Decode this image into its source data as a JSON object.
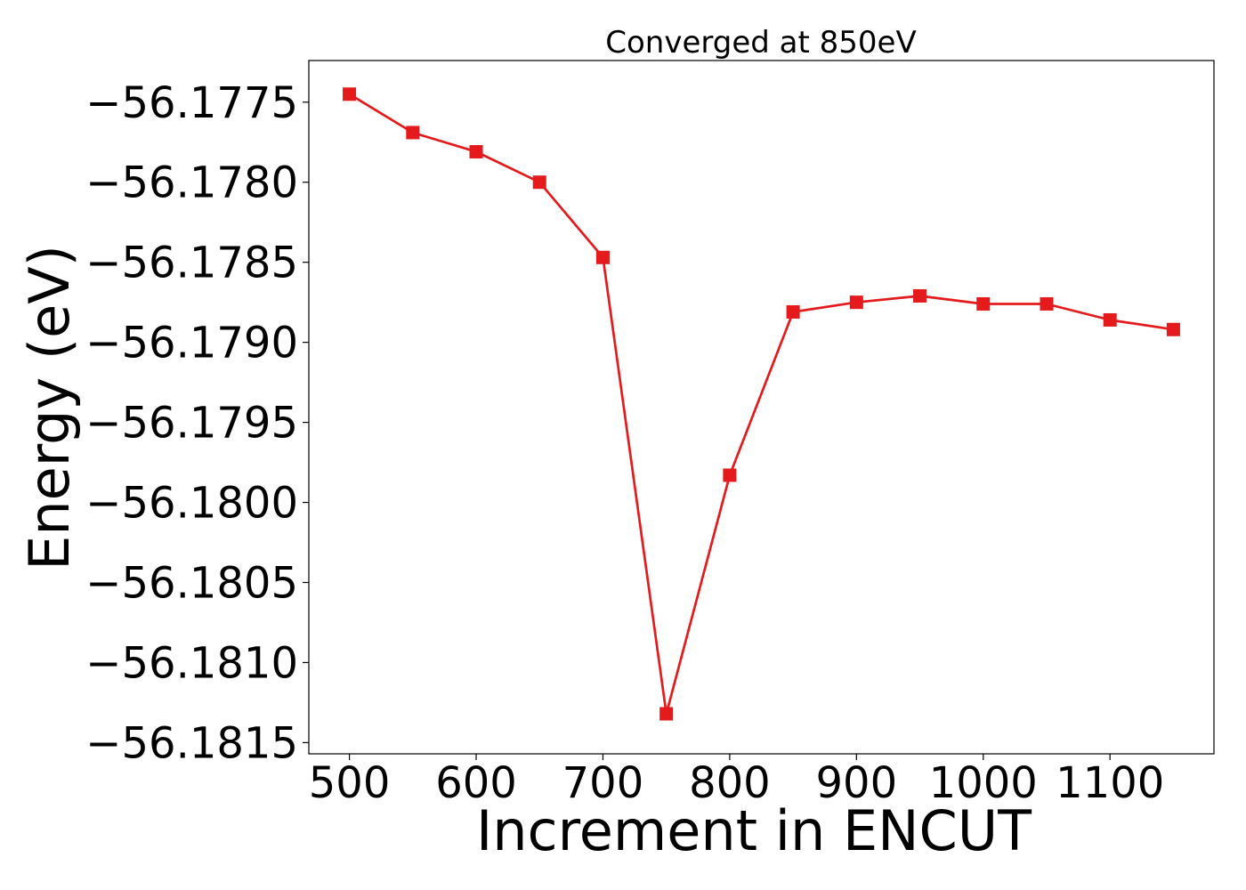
{
  "chart_data": {
    "type": "line",
    "title": "Converged at 850eV",
    "xlabel": "Increment in ENCUT",
    "ylabel": "Energy (eV)",
    "x": [
      500,
      550,
      600,
      650,
      700,
      750,
      800,
      850,
      900,
      950,
      1000,
      1050,
      1100,
      1150
    ],
    "series": [
      {
        "values": [
          -56.17745,
          -56.17769,
          -56.17781,
          -56.178,
          -56.17847,
          -56.18132,
          -56.17983,
          -56.17881,
          -56.17875,
          -56.17871,
          -56.17876,
          -56.17876,
          -56.17886,
          -56.17892
        ],
        "color": "#e41a1c",
        "marker": "square"
      }
    ],
    "xlim": [
      468,
      1182
    ],
    "ylim": [
      -56.18157,
      -56.17724
    ],
    "xticks": [
      500,
      600,
      700,
      800,
      900,
      1000,
      1100
    ],
    "xtick_labels": [
      "500",
      "600",
      "700",
      "800",
      "900",
      "1000",
      "1100"
    ],
    "yticks": [
      -56.1775,
      -56.178,
      -56.1785,
      -56.179,
      -56.1795,
      -56.18,
      -56.1805,
      -56.181,
      -56.1815
    ],
    "ytick_labels": [
      "−56.1775",
      "−56.1780",
      "−56.1785",
      "−56.1790",
      "−56.1795",
      "−56.1800",
      "−56.1805",
      "−56.1810",
      "−56.1815"
    ],
    "grid": false,
    "legend": "none"
  }
}
